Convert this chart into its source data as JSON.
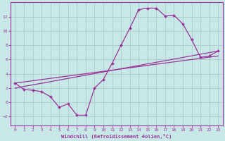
{
  "xlabel": "Windchill (Refroidissement éolien,°C)",
  "bg_color": "#c8e8e8",
  "grid_color": "#b0d0d0",
  "line_color": "#993399",
  "xlim": [
    -0.5,
    23.5
  ],
  "ylim": [
    -3.2,
    14.0
  ],
  "xticks": [
    0,
    1,
    2,
    3,
    4,
    5,
    6,
    7,
    8,
    9,
    10,
    11,
    12,
    13,
    14,
    15,
    16,
    17,
    18,
    19,
    20,
    21,
    22,
    23
  ],
  "yticks": [
    -2,
    0,
    2,
    4,
    6,
    8,
    10,
    12
  ],
  "line1_x": [
    0,
    1,
    2,
    3,
    4,
    5,
    6,
    7,
    8,
    9,
    10,
    11,
    12,
    13,
    14,
    15,
    16,
    17,
    18,
    19,
    20,
    21,
    22,
    23
  ],
  "line1_y": [
    2.7,
    1.8,
    1.7,
    1.5,
    0.8,
    -0.7,
    -0.2,
    -1.8,
    -1.8,
    2.0,
    3.2,
    5.5,
    8.0,
    10.4,
    13.0,
    13.2,
    13.2,
    12.1,
    12.2,
    11.0,
    8.8,
    6.3,
    6.5,
    7.2
  ],
  "line2_x": [
    0,
    23
  ],
  "line2_y": [
    2.0,
    7.2
  ],
  "line3_x": [
    0,
    23
  ],
  "line3_y": [
    2.7,
    6.5
  ]
}
